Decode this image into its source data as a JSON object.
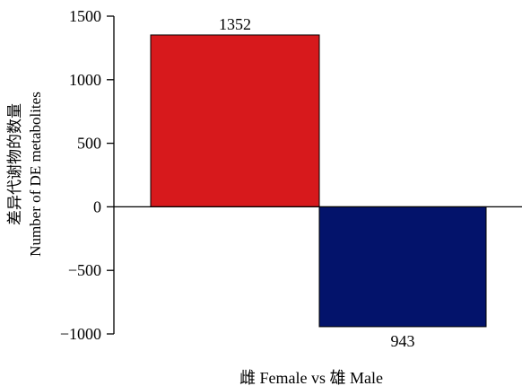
{
  "chart_data": {
    "type": "bar",
    "categories": [
      "雌 Female vs 雄 Male"
    ],
    "series": [
      {
        "name": "",
        "values": [
          1352
        ],
        "label": "1352",
        "color": "#d7191c"
      },
      {
        "name": "",
        "values": [
          -943
        ],
        "label": "943",
        "color": "#03136b"
      }
    ],
    "title": "",
    "xlabel": "雌 Female vs 雄 Male",
    "ylabel_cn": "差异代谢物的数量",
    "ylabel_en": "Number of DE metabolites",
    "ylim": [
      -1000,
      1500
    ],
    "yticks": [
      1500,
      1000,
      500,
      0,
      -500,
      -1000
    ],
    "ytick_labels": [
      "1500",
      "1000",
      "500",
      "0",
      "−500",
      "−1000"
    ],
    "grid": false,
    "legend": "none"
  }
}
